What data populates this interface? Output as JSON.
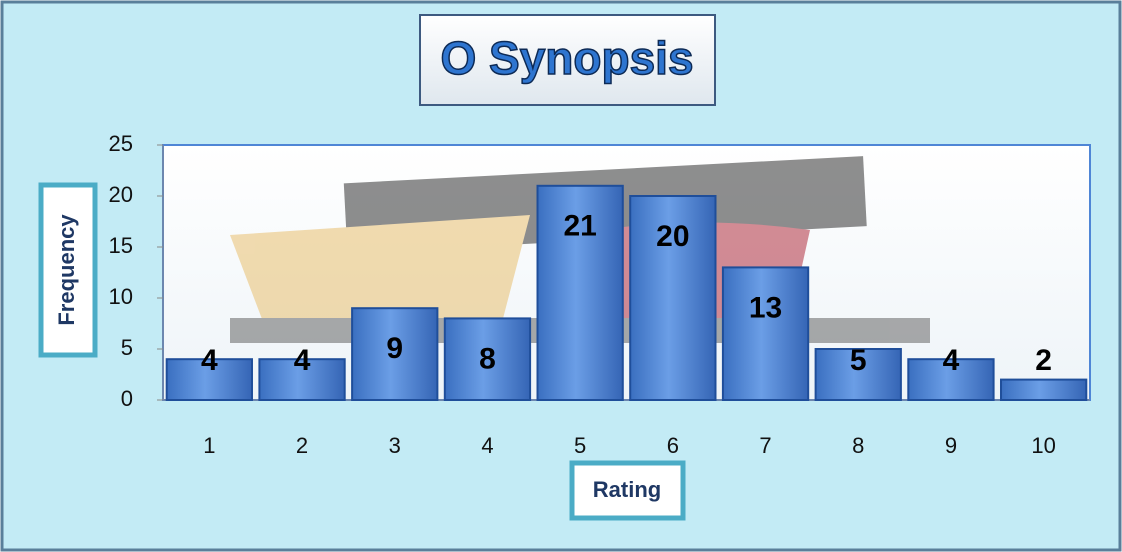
{
  "chart_data": {
    "type": "bar",
    "title": "O Synopsis",
    "x_label": "Rating",
    "y_label": "Frequency",
    "categories": [
      "1",
      "2",
      "3",
      "4",
      "5",
      "6",
      "7",
      "8",
      "9",
      "10"
    ],
    "values": [
      4,
      4,
      9,
      8,
      21,
      20,
      13,
      5,
      4,
      2
    ],
    "color": "#4f86d6",
    "ylim": [
      0,
      25
    ],
    "yticks": [
      0,
      5,
      10,
      15,
      20,
      25
    ],
    "grid": false
  }
}
